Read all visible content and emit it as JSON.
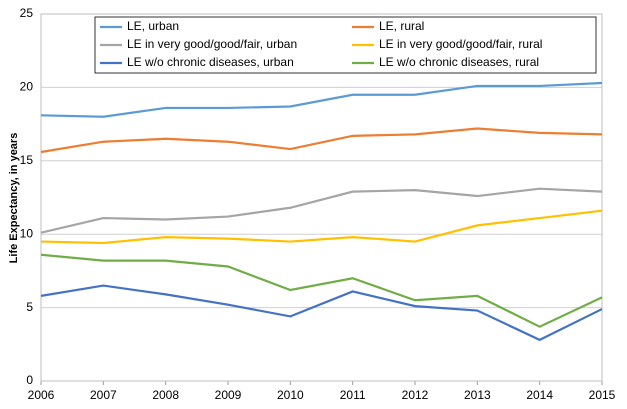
{
  "chart_data": {
    "type": "line",
    "y_label": "Life Expectancy, in years",
    "x": [
      2006,
      2007,
      2008,
      2009,
      2010,
      2011,
      2012,
      2013,
      2014,
      2015
    ],
    "xlim": [
      2006,
      2015
    ],
    "xticks": [
      2006,
      2007,
      2008,
      2009,
      2010,
      2011,
      2012,
      2013,
      2014,
      2015
    ],
    "ylim": [
      0,
      25
    ],
    "yticks": [
      0,
      5,
      10,
      15,
      20,
      25
    ],
    "grid": true,
    "legend": "top",
    "series": [
      {
        "name": "LE, urban",
        "color": "#5b9bd5",
        "values": [
          18.1,
          18.0,
          18.6,
          18.6,
          18.7,
          19.5,
          19.5,
          20.1,
          20.1,
          20.3
        ]
      },
      {
        "name": "LE, rural",
        "color": "#ed7d31",
        "values": [
          15.6,
          16.3,
          16.5,
          16.3,
          15.8,
          16.7,
          16.8,
          17.2,
          16.9,
          16.8
        ]
      },
      {
        "name": "LE in very good/good/fair, urban",
        "color": "#a5a5a5",
        "values": [
          10.1,
          11.1,
          11.0,
          11.2,
          11.8,
          12.9,
          13.0,
          12.6,
          13.1,
          12.9
        ]
      },
      {
        "name": "LE in very good/good/fair, rural",
        "color": "#ffc000",
        "values": [
          9.5,
          9.4,
          9.8,
          9.7,
          9.5,
          9.8,
          9.5,
          10.6,
          11.1,
          11.6
        ]
      },
      {
        "name": "LE w/o chronic diseases, urban",
        "color": "#4472c4",
        "values": [
          5.8,
          6.5,
          5.9,
          5.2,
          4.4,
          6.1,
          5.1,
          4.8,
          2.8,
          4.9
        ]
      },
      {
        "name": "LE w/o chronic diseases, rural",
        "color": "#70ad47",
        "values": [
          8.6,
          8.2,
          8.2,
          7.8,
          6.2,
          7.0,
          5.5,
          5.8,
          3.7,
          5.7
        ]
      }
    ]
  }
}
